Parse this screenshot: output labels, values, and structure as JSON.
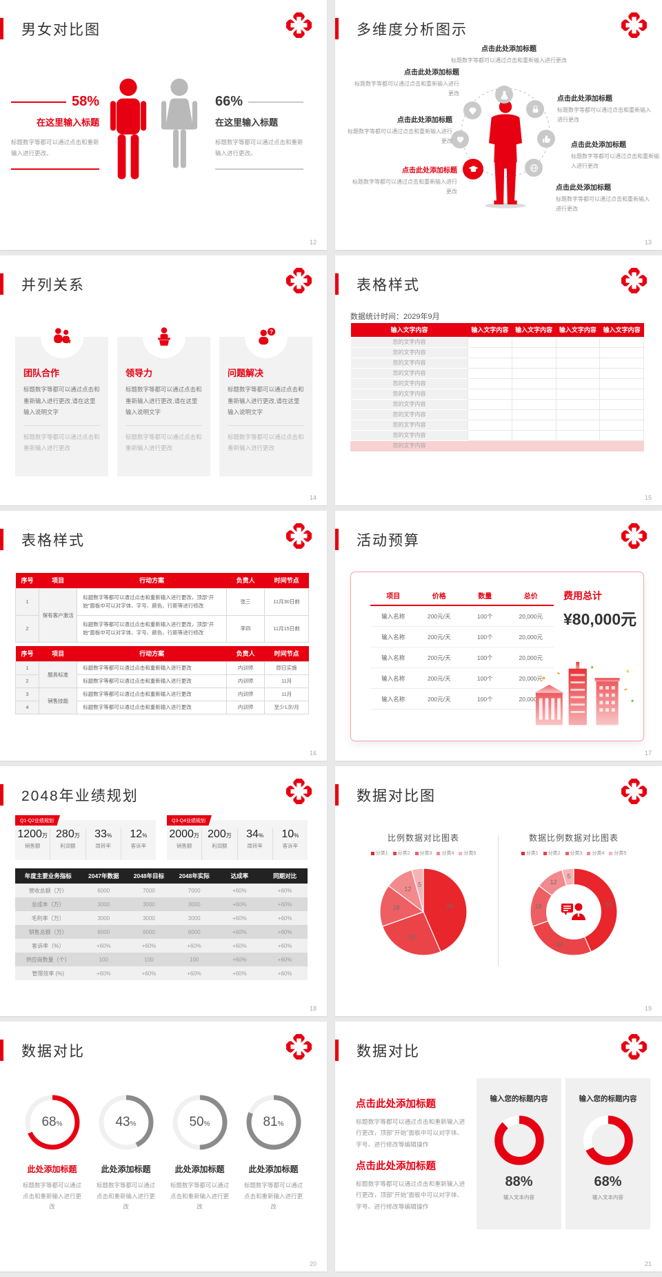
{
  "accent": "#e60012",
  "slides": {
    "s12": {
      "page": "12",
      "title": "男女对比图",
      "left": {
        "pct": "58%",
        "heading": "在这里输入标题",
        "body": "标题数字等都可以通过点击和重新输入进行更改。"
      },
      "right": {
        "pct": "66%",
        "heading": "在这里输入标题",
        "body": "标题数字等都可以通过点击和重新输入进行更改。"
      }
    },
    "s13": {
      "page": "13",
      "title": "多维度分析图示",
      "items": [
        {
          "title": "点击此处添加标题",
          "body": "标题数字等都可以通过点击和重新输入进行更改"
        },
        {
          "title": "点击此处添加标题",
          "body": "标题数字等都可以通过点击和重新输入进行更改"
        },
        {
          "title": "点击此处添加标题",
          "body": "标题数字等都可以通过点击和重新输入进行更改"
        },
        {
          "title": "点击此处添加标题",
          "body": "标题数字等都可以通过点击和重新输入进行更改"
        },
        {
          "title": "点击此处添加标题",
          "body": "标题数字等都可以通过点击和重新输入进行更改"
        },
        {
          "title": "点击此处添加标题",
          "body": "标题数字等都可以通过点击和重新输入进行更改"
        },
        {
          "title": "点击此处添加标题",
          "body": "标题数字等都可以通过点击和重新输入进行更改"
        }
      ]
    },
    "s14": {
      "page": "14",
      "title": "并列关系",
      "cards": [
        {
          "name": "团队合作",
          "body": "标题数字等都可以通过点击和重新输入进行更改,请在这里输入说明文字",
          "note": "标题数字等都可以通过点击和重新输入进行更改"
        },
        {
          "name": "领导力",
          "body": "标题数字等都可以通过点击和重新输入进行更改,请在这里输入说明文字",
          "note": "标题数字等都可以通过点击和重新输入进行更改"
        },
        {
          "name": "问题解决",
          "body": "标题数字等都可以通过点击和重新输入进行更改,请在这里输入说明文字",
          "note": "标题数字等都可以通过点击和重新输入进行更改"
        }
      ]
    },
    "s15": {
      "page": "15",
      "title": "表格样式",
      "subtitle": "数据统计时间：2029年9月",
      "header": "输入文字内容",
      "cell": "您的文字内容"
    },
    "s16": {
      "page": "16",
      "title": "表格样式",
      "headers": [
        "序号",
        "项目",
        "行动方案",
        "负责人",
        "时间节点"
      ],
      "table_a": {
        "project": "保有客户激活",
        "plan": "标题数字等都可以通过点击和重新输入进行更改，顶部“开始”面板中可以对字体、字号、颜色、行距等进行修改",
        "rows": [
          [
            "1",
            "张三",
            "11月30日前"
          ],
          [
            "2",
            "李四",
            "11月15日前"
          ]
        ]
      },
      "table_b": {
        "projects": [
          "服务标准",
          "销售技能"
        ],
        "plan": "标题数字等都可以通过点击和重新输入进行更改",
        "rows": [
          [
            "1",
            "内训师",
            "即日实施"
          ],
          [
            "2",
            "内训师",
            "11月"
          ],
          [
            "3",
            "内训师",
            "11月"
          ],
          [
            "4",
            "内训师",
            "至少1次/月"
          ]
        ]
      }
    },
    "s17": {
      "page": "17",
      "title": "活动预算",
      "headers": [
        "项目",
        "价格",
        "数量",
        "总价"
      ],
      "row": [
        "输入名称",
        "200元/天",
        "100个",
        "20,000元"
      ],
      "total_label": "费用总计",
      "total_value": "¥80,000元"
    },
    "s18": {
      "page": "18",
      "title": "2048年业绩规划",
      "panels": [
        {
          "badge": "Q1-Q2业绩规划",
          "stats": [
            {
              "num": "1200",
              "unit": "万",
              "label": "销售额"
            },
            {
              "num": "280",
              "unit": "万",
              "label": "利润额"
            },
            {
              "num": "33",
              "unit": "%",
              "label": "周转率"
            },
            {
              "num": "12",
              "unit": "%",
              "label": "客诉率"
            }
          ]
        },
        {
          "badge": "Q3-Q4业绩规划",
          "stats": [
            {
              "num": "2000",
              "unit": "万",
              "label": "销售额"
            },
            {
              "num": "200",
              "unit": "万",
              "label": "利润额"
            },
            {
              "num": "34",
              "unit": "%",
              "label": "周转率"
            },
            {
              "num": "10",
              "unit": "%",
              "label": "客诉率"
            }
          ]
        }
      ],
      "table": {
        "headers": [
          "年度主要业务指标",
          "2047年数据",
          "2048年目标",
          "2048年实际",
          "达成率",
          "同期对比"
        ],
        "rows": [
          [
            "营收总额（万）",
            "6000",
            "7000",
            "7000",
            "+60%",
            "+60%"
          ],
          [
            "总成本（万）",
            "3000",
            "3000",
            "3000",
            "+60%",
            "+60%"
          ],
          [
            "毛利率（万）",
            "3000",
            "3000",
            "3000",
            "+60%",
            "+60%"
          ],
          [
            "销售总额（万）",
            "6000",
            "6000",
            "6000",
            "+60%",
            "+60%"
          ],
          [
            "客诉率（%）",
            "+60%",
            "+60%",
            "+60%",
            "+60%",
            "+60%"
          ],
          [
            "供应商数量（个）",
            "100",
            "100",
            "100",
            "+60%",
            "+60%"
          ],
          [
            "管理效率 (%)",
            "+60%",
            "+60%",
            "+60%",
            "+60%",
            "+60%"
          ]
        ]
      }
    },
    "s19": {
      "page": "19",
      "title": "数据对比图",
      "pie_title": "比例数据对比图表",
      "donut_title": "数据比例数据对比图表",
      "legend": [
        "分类1",
        "分类2",
        "分类3",
        "分类4",
        "分类5"
      ],
      "values": [
        50,
        30,
        18,
        12,
        5
      ],
      "colors": [
        "#e8262b",
        "#ea4348",
        "#ee5f63",
        "#f28a8d",
        "#f6b3b5"
      ]
    },
    "s20": {
      "page": "20",
      "title": "数据对比",
      "body": "标题数字等都可以通过点击和重新输入进行更改",
      "items": [
        {
          "pct": 68,
          "pct_label": "68",
          "title": "此处添加标题",
          "color": "#e60012",
          "track": "#f0f0f0"
        },
        {
          "pct": 43,
          "pct_label": "43",
          "title": "此处添加标题",
          "color": "#8b8b8b",
          "track": "#f0f0f0"
        },
        {
          "pct": 50,
          "pct_label": "50",
          "title": "此处添加标题",
          "color": "#8b8b8b",
          "track": "#f0f0f0"
        },
        {
          "pct": 81,
          "pct_label": "81",
          "title": "此处添加标题",
          "color": "#8b8b8b",
          "track": "#f0f0f0"
        }
      ]
    },
    "s21": {
      "page": "21",
      "title": "数据对比",
      "groups": [
        {
          "title": "点击此处添加标题",
          "body": "标题数字等都可以通过点击和重新输入进行更改，顶部“开始”面板中可以对字体、字号、进行修改等编辑操作"
        },
        {
          "title": "点击此处添加标题",
          "body": "标题数字等都可以通过点击和重新输入进行更改，顶部“开始”面板中可以对字体、字号、进行修改等编辑操作"
        }
      ],
      "cards": [
        {
          "header": "输入您的标题内容",
          "pct_label": "88%",
          "caption": "输入文本内容",
          "ring": {
            "pct": 88,
            "color": "#e60012",
            "track": "#ffffff"
          }
        },
        {
          "header": "输入您的标题内容",
          "pct_label": "68%",
          "caption": "输入文本内容",
          "ring": {
            "pct": 68,
            "color": "#e60012",
            "track": "#ffffff"
          }
        }
      ]
    }
  },
  "chart_data": [
    {
      "type": "pie",
      "slide": "19",
      "title": "比例数据对比图表",
      "labels": [
        "分类1",
        "分类2",
        "分类3",
        "分类4",
        "分类5"
      ],
      "values": [
        50,
        30,
        18,
        12,
        5
      ],
      "colors": [
        "#e8262b",
        "#ea4348",
        "#ee5f63",
        "#f28a8d",
        "#f6b3b5"
      ],
      "legend_position": "top"
    },
    {
      "type": "pie",
      "slide": "19",
      "subtype": "donut",
      "title": "数据比例数据对比图表",
      "labels": [
        "分类1",
        "分类2",
        "分类3",
        "分类4",
        "分类5"
      ],
      "values": [
        50,
        30,
        18,
        12,
        5
      ],
      "colors": [
        "#e8262b",
        "#ea4348",
        "#ee5f63",
        "#f28a8d",
        "#f6b3b5"
      ],
      "legend_position": "top"
    },
    {
      "type": "gauge",
      "slide": "20",
      "values": [
        68,
        43,
        50,
        81
      ],
      "labels": [
        "此处添加标题",
        "此处添加标题",
        "此处添加标题",
        "此处添加标题"
      ]
    },
    {
      "type": "gauge",
      "slide": "21",
      "values": [
        88,
        68
      ],
      "labels": [
        "输入您的标题内容",
        "输入您的标题内容"
      ]
    },
    {
      "type": "bar",
      "slide": "12",
      "categories": [
        "男",
        "女"
      ],
      "values": [
        58,
        66
      ],
      "title": "男女对比图"
    }
  ]
}
